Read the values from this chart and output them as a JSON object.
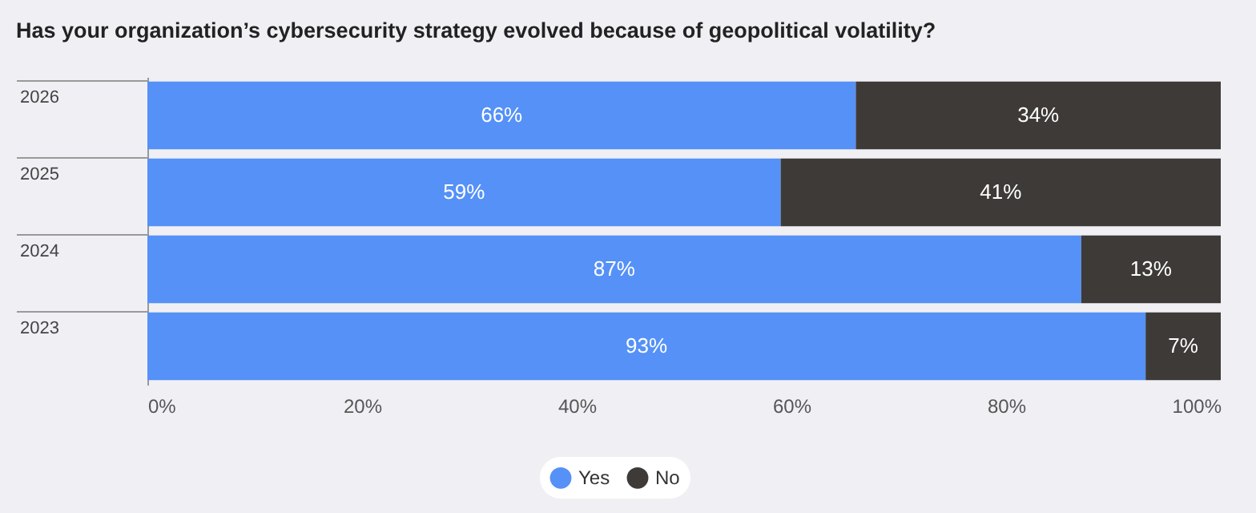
{
  "chart_data": {
    "type": "bar",
    "orientation": "horizontal",
    "stacked": true,
    "title": "Has your organization’s cybersecurity strategy evolved because of geopolitical volatility?",
    "categories": [
      "2026",
      "2025",
      "2024",
      "2023"
    ],
    "series": [
      {
        "name": "Yes",
        "color": "#5591f7",
        "values": [
          66,
          59,
          87,
          93
        ],
        "value_labels": [
          "66%",
          "59%",
          "87%",
          "93%"
        ]
      },
      {
        "name": "No",
        "color": "#3d3a38",
        "values": [
          34,
          41,
          13,
          7
        ],
        "value_labels": [
          "34%",
          "41%",
          "13%",
          "7%"
        ]
      }
    ],
    "xlim": [
      0,
      100
    ],
    "xticks": [
      {
        "value": 0,
        "label": "0%"
      },
      {
        "value": 20,
        "label": "20%"
      },
      {
        "value": 40,
        "label": "40%"
      },
      {
        "value": 60,
        "label": "60%"
      },
      {
        "value": 80,
        "label": "80%"
      },
      {
        "value": 100,
        "label": "100%"
      }
    ],
    "grid": false,
    "legend": "bottom"
  }
}
